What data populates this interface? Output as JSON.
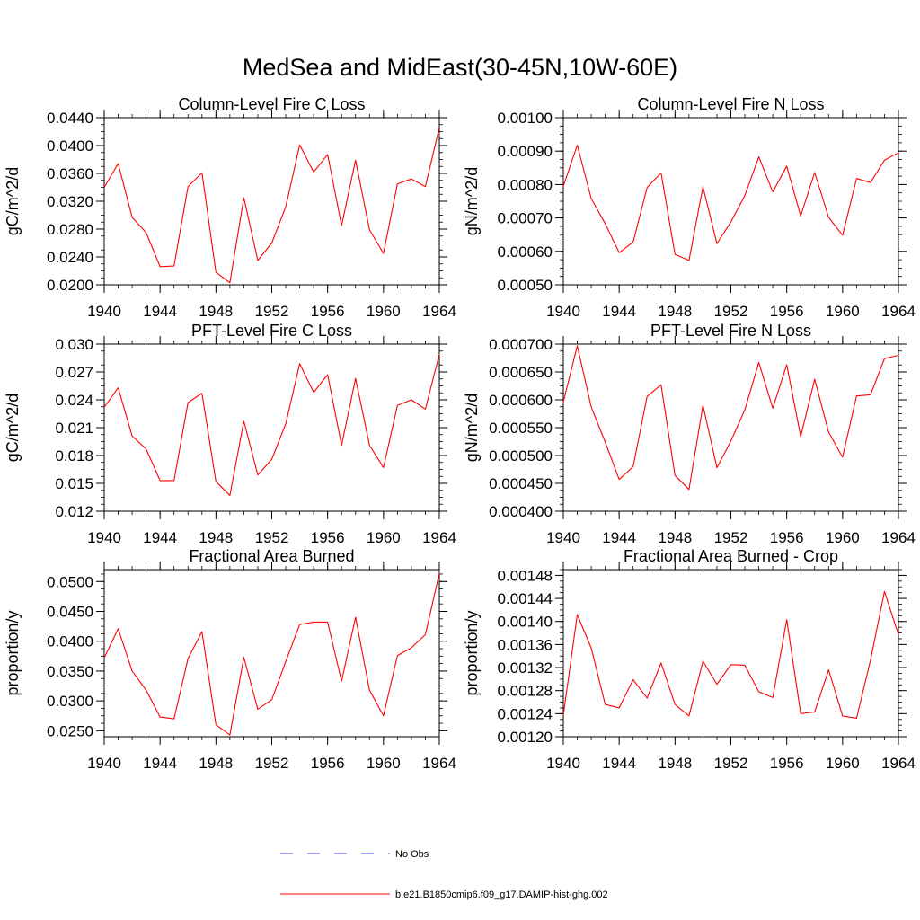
{
  "figure": {
    "title": "MedSea and MidEast(30-45N,10W-60E)"
  },
  "chart_data": [
    {
      "type": "line",
      "title": "Column-Level Fire C Loss",
      "xlabel": "",
      "ylabel": "gC/m^2/d",
      "xlim": [
        1940,
        1964
      ],
      "ylim": [
        0.02,
        0.044
      ],
      "xticks": [
        "1940",
        "1944",
        "1948",
        "1952",
        "1956",
        "1960",
        "1964"
      ],
      "yticks": [
        "0.0200",
        "0.0240",
        "0.0280",
        "0.0320",
        "0.0360",
        "0.0400",
        "0.0440"
      ],
      "grid": false,
      "x": [
        1940,
        1941,
        1942,
        1943,
        1944,
        1945,
        1946,
        1947,
        1948,
        1949,
        1950,
        1951,
        1952,
        1953,
        1954,
        1955,
        1956,
        1957,
        1958,
        1959,
        1960,
        1961,
        1962,
        1963,
        1964
      ],
      "series": [
        {
          "name": "b.e21.B1850cmip6.f09_g17.DAMIP-hist-ghg.002",
          "color": "#ff0000",
          "values": [
            0.034,
            0.0374,
            0.0297,
            0.0275,
            0.0226,
            0.0227,
            0.0341,
            0.0361,
            0.0218,
            0.0203,
            0.0325,
            0.0235,
            0.026,
            0.0312,
            0.0401,
            0.0362,
            0.0387,
            0.0285,
            0.0379,
            0.0279,
            0.0245,
            0.0345,
            0.0352,
            0.0341,
            0.0426
          ]
        }
      ]
    },
    {
      "type": "line",
      "title": "Column-Level Fire N Loss",
      "xlabel": "",
      "ylabel": "gN/m^2/d",
      "xlim": [
        1940,
        1964
      ],
      "ylim": [
        0.0005,
        0.001
      ],
      "xticks": [
        "1940",
        "1944",
        "1948",
        "1952",
        "1956",
        "1960",
        "1964"
      ],
      "yticks": [
        "0.00050",
        "0.00060",
        "0.00070",
        "0.00080",
        "0.00090",
        "0.00100"
      ],
      "grid": false,
      "x": [
        1940,
        1941,
        1942,
        1943,
        1944,
        1945,
        1946,
        1947,
        1948,
        1949,
        1950,
        1951,
        1952,
        1953,
        1954,
        1955,
        1956,
        1957,
        1958,
        1959,
        1960,
        1961,
        1962,
        1963,
        1964
      ],
      "series": [
        {
          "name": "b.e21.B1850cmip6.f09_g17.DAMIP-hist-ghg.002",
          "color": "#ff0000",
          "values": [
            0.000795,
            0.000918,
            0.000758,
            0.000683,
            0.000596,
            0.000628,
            0.000791,
            0.000835,
            0.000591,
            0.000573,
            0.000793,
            0.000623,
            0.000688,
            0.000767,
            0.000883,
            0.000778,
            0.000855,
            0.000706,
            0.000836,
            0.000702,
            0.000648,
            0.000818,
            0.000806,
            0.000873,
            0.000895
          ]
        }
      ]
    },
    {
      "type": "line",
      "title": "PFT-Level Fire C Loss",
      "xlabel": "",
      "ylabel": "gC/m^2/d",
      "xlim": [
        1940,
        1964
      ],
      "ylim": [
        0.012,
        0.03
      ],
      "xticks": [
        "1940",
        "1944",
        "1948",
        "1952",
        "1956",
        "1960",
        "1964"
      ],
      "yticks": [
        "0.012",
        "0.015",
        "0.018",
        "0.021",
        "0.024",
        "0.027",
        "0.030"
      ],
      "grid": false,
      "x": [
        1940,
        1941,
        1942,
        1943,
        1944,
        1945,
        1946,
        1947,
        1948,
        1949,
        1950,
        1951,
        1952,
        1953,
        1954,
        1955,
        1956,
        1957,
        1958,
        1959,
        1960,
        1961,
        1962,
        1963,
        1964
      ],
      "series": [
        {
          "name": "b.e21.B1850cmip6.f09_g17.DAMIP-hist-ghg.002",
          "color": "#ff0000",
          "values": [
            0.0232,
            0.0253,
            0.0201,
            0.0187,
            0.0153,
            0.0153,
            0.0237,
            0.0247,
            0.0152,
            0.0137,
            0.0217,
            0.0159,
            0.0176,
            0.0214,
            0.0279,
            0.0248,
            0.0267,
            0.0191,
            0.0263,
            0.0191,
            0.0167,
            0.0234,
            0.024,
            0.023,
            0.0289
          ]
        }
      ]
    },
    {
      "type": "line",
      "title": "PFT-Level Fire N Loss",
      "xlabel": "",
      "ylabel": "gN/m^2/d",
      "xlim": [
        1940,
        1964
      ],
      "ylim": [
        0.0004,
        0.0007
      ],
      "xticks": [
        "1940",
        "1944",
        "1948",
        "1952",
        "1956",
        "1960",
        "1964"
      ],
      "yticks": [
        "0.000400",
        "0.000450",
        "0.000500",
        "0.000550",
        "0.000600",
        "0.000650",
        "0.000700"
      ],
      "grid": false,
      "x": [
        1940,
        1941,
        1942,
        1943,
        1944,
        1945,
        1946,
        1947,
        1948,
        1949,
        1950,
        1951,
        1952,
        1953,
        1954,
        1955,
        1956,
        1957,
        1958,
        1959,
        1960,
        1961,
        1962,
        1963,
        1964
      ],
      "series": [
        {
          "name": "b.e21.B1850cmip6.f09_g17.DAMIP-hist-ghg.002",
          "color": "#ff0000",
          "values": [
            0.000596,
            0.000697,
            0.000587,
            0.000524,
            0.000457,
            0.00048,
            0.000606,
            0.000627,
            0.000464,
            0.000439,
            0.00059,
            0.000478,
            0.000526,
            0.000582,
            0.000667,
            0.000585,
            0.000663,
            0.000534,
            0.000637,
            0.000542,
            0.000497,
            0.000607,
            0.000609,
            0.000674,
            0.00068
          ]
        }
      ]
    },
    {
      "type": "line",
      "title": "Fractional Area Burned",
      "xlabel": "",
      "ylabel": "proportion/y",
      "xlim": [
        1940,
        1964
      ],
      "ylim": [
        0.024,
        0.052
      ],
      "xticks": [
        "1940",
        "1944",
        "1948",
        "1952",
        "1956",
        "1960",
        "1964"
      ],
      "yticks": [
        "0.0250",
        "0.0300",
        "0.0350",
        "0.0400",
        "0.0450",
        "0.0500"
      ],
      "grid": false,
      "x": [
        1940,
        1941,
        1942,
        1943,
        1944,
        1945,
        1946,
        1947,
        1948,
        1949,
        1950,
        1951,
        1952,
        1953,
        1954,
        1955,
        1956,
        1957,
        1958,
        1959,
        1960,
        1961,
        1962,
        1963,
        1964
      ],
      "series": [
        {
          "name": "b.e21.B1850cmip6.f09_g17.DAMIP-hist-ghg.002",
          "color": "#ff0000",
          "values": [
            0.0372,
            0.0421,
            0.035,
            0.0318,
            0.0273,
            0.027,
            0.0371,
            0.0416,
            0.026,
            0.0243,
            0.0373,
            0.0286,
            0.0302,
            0.0366,
            0.0428,
            0.0432,
            0.0432,
            0.0333,
            0.044,
            0.0318,
            0.0275,
            0.0376,
            0.0389,
            0.0411,
            0.0514
          ]
        }
      ]
    },
    {
      "type": "line",
      "title": "Fractional Area Burned - Crop",
      "xlabel": "",
      "ylabel": "proportion/y",
      "xlim": [
        1940,
        1964
      ],
      "ylim": [
        0.0012,
        0.00149
      ],
      "xticks": [
        "1940",
        "1944",
        "1948",
        "1952",
        "1956",
        "1960",
        "1964"
      ],
      "yticks": [
        "0.00120",
        "0.00124",
        "0.00128",
        "0.00132",
        "0.00136",
        "0.00140",
        "0.00144",
        "0.00148"
      ],
      "grid": false,
      "x": [
        1940,
        1941,
        1942,
        1943,
        1944,
        1945,
        1946,
        1947,
        1948,
        1949,
        1950,
        1951,
        1952,
        1953,
        1954,
        1955,
        1956,
        1957,
        1958,
        1959,
        1960,
        1961,
        1962,
        1963,
        1964
      ],
      "series": [
        {
          "name": "b.e21.B1850cmip6.f09_g17.DAMIP-hist-ghg.002",
          "color": "#ff0000",
          "values": [
            0.001237,
            0.001412,
            0.001354,
            0.001256,
            0.00125,
            0.001299,
            0.001267,
            0.001328,
            0.001256,
            0.001236,
            0.001331,
            0.001291,
            0.001325,
            0.001324,
            0.001278,
            0.001268,
            0.001403,
            0.00124,
            0.001243,
            0.001316,
            0.001236,
            0.001232,
            0.001333,
            0.001452,
            0.001377
          ]
        }
      ]
    }
  ],
  "legend": {
    "placement": "bottom-center",
    "items": [
      {
        "label": "No Obs",
        "color": "#3c3cc8",
        "style": "dashed"
      },
      {
        "label": "b.e21.B1850cmip6.f09_g17.DAMIP-hist-ghg.002",
        "color": "#ff0000",
        "style": "solid"
      }
    ]
  }
}
